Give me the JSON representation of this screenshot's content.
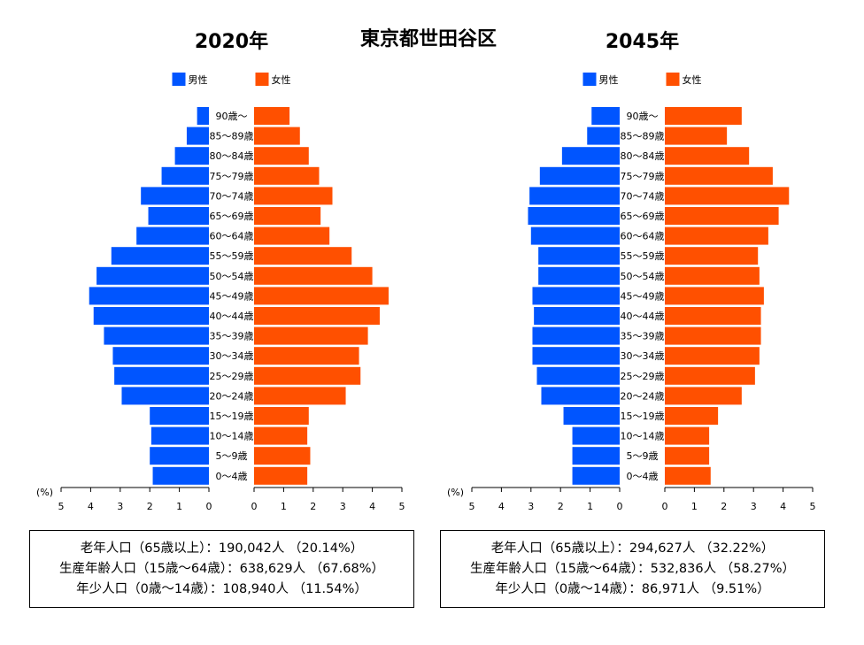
{
  "title": "東京都世田谷区",
  "colors": {
    "male": "#0055ff",
    "female": "#ff5000"
  },
  "chart_data": {
    "type": "bar",
    "orientation": "horizontal",
    "axis_unit": "(%)",
    "xlim": [
      0,
      5
    ],
    "x_ticks": [
      "5",
      "4",
      "3",
      "2",
      "1",
      "0"
    ],
    "legend": {
      "male": "男性",
      "female": "女性",
      "placement": "top"
    },
    "categories": [
      "0〜4歳",
      "5〜9歳",
      "10〜14歳",
      "15〜19歳",
      "20〜24歳",
      "25〜29歳",
      "30〜34歳",
      "35〜39歳",
      "40〜44歳",
      "45〜49歳",
      "50〜54歳",
      "55〜59歳",
      "60〜64歳",
      "65〜69歳",
      "70〜74歳",
      "75〜79歳",
      "80〜84歳",
      "85〜89歳",
      "90歳〜"
    ],
    "pyramids": [
      {
        "title": "2020年",
        "series": [
          {
            "name": "男性",
            "values": [
              1.9,
              2.0,
              1.95,
              2.0,
              2.95,
              3.2,
              3.25,
              3.55,
              3.9,
              4.05,
              3.8,
              3.3,
              2.45,
              2.05,
              2.3,
              1.6,
              1.15,
              0.75,
              0.4
            ]
          },
          {
            "name": "女性",
            "values": [
              1.8,
              1.9,
              1.8,
              1.85,
              3.1,
              3.6,
              3.55,
              3.85,
              4.25,
              4.55,
              4.0,
              3.3,
              2.55,
              2.25,
              2.65,
              2.2,
              1.85,
              1.55,
              1.2
            ]
          }
        ]
      },
      {
        "title": "2045年",
        "series": [
          {
            "name": "男性",
            "values": [
              1.6,
              1.6,
              1.6,
              1.9,
              2.65,
              2.8,
              2.95,
              2.95,
              2.9,
              2.95,
              2.75,
              2.75,
              3.0,
              3.1,
              3.05,
              2.7,
              1.95,
              1.1,
              0.95
            ]
          },
          {
            "name": "女性",
            "values": [
              1.55,
              1.5,
              1.5,
              1.8,
              2.6,
              3.05,
              3.2,
              3.25,
              3.25,
              3.35,
              3.2,
              3.15,
              3.5,
              3.85,
              4.2,
              3.65,
              2.85,
              2.1,
              2.6
            ]
          }
        ]
      }
    ]
  },
  "summaries": [
    {
      "elderly": "老年人口（65歳以上）：190,042人 （20.14%）",
      "working": "生産年齢人口（15歳〜64歳）：638,629人 （67.68%）",
      "young": "年少人口（0歳〜14歳）：108,940人 （11.54%）"
    },
    {
      "elderly": "老年人口（65歳以上）：294,627人 （32.22%）",
      "working": "生産年齢人口（15歳〜64歳）：532,836人 （58.27%）",
      "young": "年少人口（0歳〜14歳）：86,971人 （9.51%）"
    }
  ]
}
